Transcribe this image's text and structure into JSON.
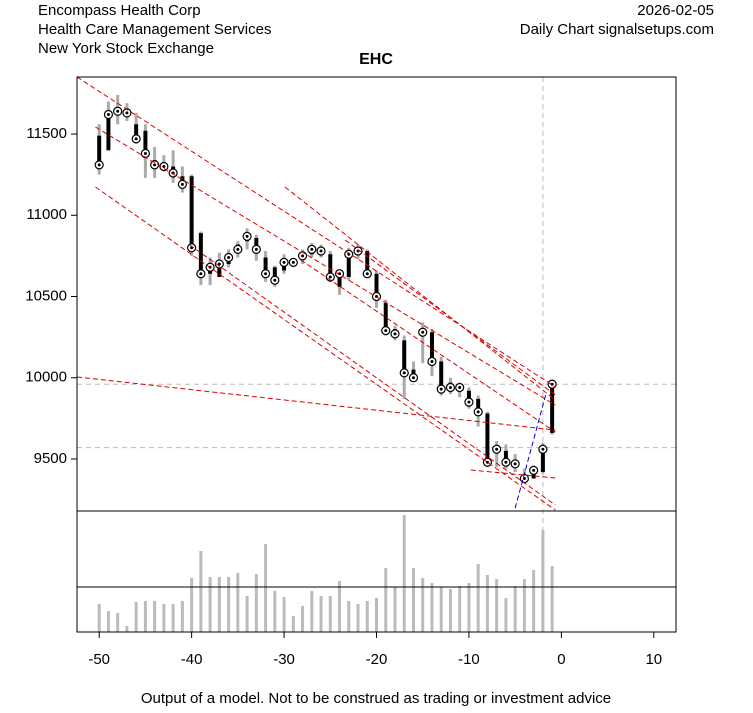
{
  "chart_data": {
    "type": "candlestick",
    "title": "EHC",
    "header_left": [
      "Encompass Health Corp",
      "Health Care Management Services",
      "New York Stock Exchange"
    ],
    "header_right": [
      "2026-02-05",
      "Daily Chart signalsetups.com"
    ],
    "footer": "Output of a model. Not to be construed as trading or investment advice",
    "x": [
      -50,
      -49,
      -48,
      -47,
      -46,
      -45,
      -44,
      -43,
      -42,
      -41,
      -40,
      -39,
      -38,
      -37,
      -36,
      -35,
      -34,
      -33,
      -32,
      -31,
      -30,
      -29,
      -28,
      -27,
      -26,
      -25,
      -24,
      -23,
      -22,
      -21,
      -20,
      -19,
      -18,
      -17,
      -16,
      -15,
      -14,
      -13,
      -12,
      -11,
      -10,
      -9,
      -8,
      -7,
      -6,
      -5,
      -4,
      -3,
      -2,
      -1
    ],
    "open": [
      11490,
      11400,
      11620,
      11640,
      11560,
      11520,
      11340,
      11320,
      11300,
      11240,
      11240,
      10890,
      10640,
      10620,
      10700,
      10820,
      10840,
      10860,
      10740,
      10680,
      10660,
      10700,
      10730,
      10760,
      10790,
      10760,
      10560,
      10620,
      10760,
      10780,
      10640,
      10460,
      10300,
      10230,
      10050,
      10300,
      10280,
      10100,
      9970,
      9960,
      9920,
      9870,
      9780,
      9550,
      9550,
      9480,
      9380,
      9380,
      9420,
      9660
    ],
    "high": [
      11560,
      11700,
      11740,
      11690,
      11630,
      11560,
      11420,
      11370,
      11400,
      11300,
      11250,
      10900,
      10740,
      10770,
      10790,
      10840,
      10920,
      10880,
      10780,
      10690,
      10760,
      10730,
      10790,
      10830,
      10820,
      10780,
      10640,
      10800,
      10820,
      10790,
      10660,
      10480,
      10320,
      10260,
      10100,
      10340,
      10300,
      10130,
      10000,
      9970,
      9940,
      9890,
      9790,
      9610,
      9590,
      9530,
      9440,
      9460,
      9600,
      9990
    ],
    "low": [
      11250,
      11400,
      11560,
      11580,
      11440,
      11230,
      11230,
      11270,
      11200,
      11140,
      10750,
      10570,
      10570,
      10620,
      10680,
      10740,
      10790,
      10720,
      10590,
      10560,
      10640,
      10680,
      10700,
      10740,
      10740,
      10590,
      10510,
      10600,
      10730,
      10620,
      10430,
      10260,
      10230,
      9870,
      9990,
      10090,
      10010,
      9890,
      9900,
      9880,
      9810,
      9700,
      9450,
      9450,
      9440,
      9420,
      9350,
      9390,
      9410,
      9650
    ],
    "close": [
      11310,
      11620,
      11640,
      11630,
      11470,
      11380,
      11310,
      11300,
      11260,
      11190,
      10800,
      10640,
      10680,
      10700,
      10740,
      10790,
      10870,
      10790,
      10640,
      10600,
      10710,
      10710,
      10750,
      10790,
      10780,
      10620,
      10640,
      10760,
      10780,
      10640,
      10500,
      10290,
      10270,
      10030,
      10000,
      10280,
      10100,
      9930,
      9940,
      9940,
      9850,
      9790,
      9480,
      9560,
      9480,
      9470,
      9380,
      9430,
      9560,
      9960
    ],
    "volume": [
      28,
      21,
      19,
      6,
      30,
      31,
      31,
      28,
      28,
      31,
      54,
      81,
      55,
      55,
      55,
      59,
      36,
      58,
      88,
      41,
      35,
      16,
      26,
      41,
      36,
      36,
      51,
      31,
      28,
      31,
      34,
      64,
      45,
      117,
      64,
      54,
      49,
      45,
      43,
      46,
      49,
      68,
      57,
      53,
      34,
      46,
      53,
      62,
      102,
      66
    ],
    "volume_ylim": [
      0,
      121
    ],
    "xlim": [
      -52.4,
      12.4
    ],
    "xticks": [
      -50,
      -40,
      -30,
      -20,
      -10,
      0,
      10
    ],
    "ylim": [
      9180,
      11851
    ],
    "yticks": [
      9500,
      10000,
      10500,
      11000,
      11500
    ],
    "hlines": [
      9960,
      9570
    ],
    "vline": -2,
    "trend_lines": [
      {
        "x1": -52.4,
        "y1": 11851,
        "x2": -0.65,
        "y2": 9943,
        "color": "#dd0000"
      },
      {
        "x1": -50.4,
        "y1": 11543,
        "x2": -0.65,
        "y2": 9832,
        "color": "#dd0000"
      },
      {
        "x1": -50.4,
        "y1": 11174,
        "x2": -0.65,
        "y2": 9186,
        "color": "#dd0000"
      },
      {
        "x1": -29.9,
        "y1": 11174,
        "x2": -0.65,
        "y2": 9863,
        "color": "#dd0000"
      },
      {
        "x1": -52.4,
        "y1": 10005,
        "x2": -0.65,
        "y2": 9678,
        "color": "#dd0000"
      },
      {
        "x1": -40.2,
        "y1": 10817,
        "x2": -0.65,
        "y2": 9217,
        "color": "#dd0000"
      },
      {
        "x1": -9.8,
        "y1": 9432,
        "x2": -0.65,
        "y2": 9383,
        "color": "#dd0000"
      },
      {
        "x1": -23.4,
        "y1": 10848,
        "x2": -0.65,
        "y2": 9894,
        "color": "#dd0000"
      },
      {
        "x1": -28.2,
        "y1": 10725,
        "x2": -0.65,
        "y2": 9666,
        "color": "#dd0000"
      },
      {
        "x1": -5,
        "y1": 9198,
        "x2": -1.7,
        "y2": 9894,
        "color": "#0000cc"
      }
    ]
  }
}
